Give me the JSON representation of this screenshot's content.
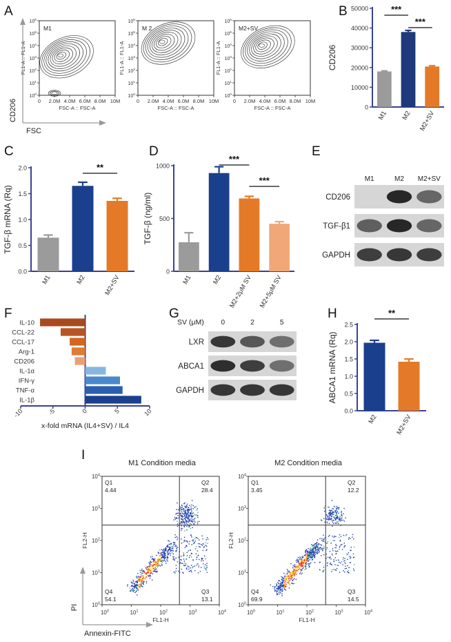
{
  "panels": {
    "A": {
      "letter": "A",
      "title": "",
      "ylabel": "CD206",
      "xlabel": "FSC",
      "plot_ylabel": "FL1-A :: FL1-A",
      "plot_xlabel": "FSC-A :: FSC-A",
      "xticks": [
        "0",
        "2.0M",
        "4.0M",
        "6.0M",
        "8.0M",
        "10M"
      ],
      "yticks": [
        "10^0",
        "10^1",
        "10^2",
        "10^3",
        "10^4",
        "10^5",
        "10^6"
      ],
      "plots": [
        {
          "label": "M1",
          "peak_x": 2.8,
          "peak_y": 3.2,
          "extra_blob": true
        },
        {
          "label": "M 2",
          "peak_x": 3.2,
          "peak_y": 4.3,
          "extra_blob": false
        },
        {
          "label": "M2+SV",
          "peak_x": 3.6,
          "peak_y": 4.0,
          "extra_blob": false
        }
      ]
    },
    "B": {
      "letter": "B",
      "chart_data": {
        "type": "bar",
        "title": "",
        "xlabel": "",
        "ylabel": "CD206",
        "categories": [
          "M1",
          "M2",
          "M2+SV"
        ],
        "values": [
          18000,
          38000,
          20500
        ],
        "errors": [
          300,
          800,
          400
        ],
        "colors": [
          "#9b9b9b",
          "#1f3a7a",
          "#e47a28"
        ],
        "ylim": [
          0,
          50000
        ],
        "yticks": [
          0,
          10000,
          20000,
          30000,
          40000,
          50000
        ],
        "significance": [
          {
            "from": 0,
            "to": 1,
            "label": "***"
          },
          {
            "from": 1,
            "to": 2,
            "label": "***"
          }
        ]
      }
    },
    "C": {
      "letter": "C",
      "chart_data": {
        "type": "bar",
        "title": "",
        "xlabel": "",
        "ylabel": "TGF-β mRNA (Rq)",
        "categories": [
          "M1",
          "M2",
          "M2+SV"
        ],
        "values": [
          0.65,
          1.65,
          1.36
        ],
        "errors": [
          0.05,
          0.07,
          0.05
        ],
        "colors": [
          "#9b9b9b",
          "#1a3f8c",
          "#e47a28"
        ],
        "ylim": [
          0,
          2.0
        ],
        "yticks": [
          "0.0",
          "0.5",
          "1.0",
          "1.5",
          "2.0"
        ],
        "significance": [
          {
            "from": 1,
            "to": 2,
            "label": "**"
          }
        ]
      }
    },
    "D": {
      "letter": "D",
      "chart_data": {
        "type": "bar",
        "title": "",
        "xlabel": "",
        "ylabel": "TGF-β (ng/ml)",
        "categories": [
          "M1",
          "M2",
          "M2+2μM SV",
          "M2+5μM SV"
        ],
        "values": [
          275,
          930,
          690,
          450
        ],
        "errors": [
          90,
          60,
          20,
          20
        ],
        "colors": [
          "#9b9b9b",
          "#1a3f8c",
          "#e47a28",
          "#f0a878"
        ],
        "ylim": [
          0,
          1000
        ],
        "yticks": [
          0,
          500,
          1000
        ],
        "significance": [
          {
            "from": 1,
            "to": 2,
            "label": "***"
          },
          {
            "from": 2,
            "to": 3,
            "label": "***"
          }
        ]
      }
    },
    "E": {
      "letter": "E",
      "lanes": [
        "M1",
        "M2",
        "M2+SV"
      ],
      "rows": [
        {
          "label": "CD206",
          "intensity": [
            0.0,
            0.95,
            0.55
          ]
        },
        {
          "label": "TGF-β1",
          "intensity": [
            0.6,
            0.95,
            0.55
          ]
        },
        {
          "label": "GAPDH",
          "intensity": [
            0.8,
            0.85,
            0.8
          ]
        }
      ]
    },
    "F": {
      "letter": "F",
      "chart_data": {
        "type": "bar",
        "orientation": "horizontal",
        "title": "",
        "xlabel": "x-fold mRNA (IL4+SV) / IL4",
        "ylabel": "",
        "categories": [
          "IL-10",
          "CCL-22",
          "CCL-17",
          "Arg-1",
          "CD206",
          "IL-1α",
          "IFN-γ",
          "TNF-α",
          "IL-1β"
        ],
        "values": [
          -7.0,
          -3.8,
          -2.4,
          -2.1,
          -1.6,
          3.2,
          5.4,
          5.8,
          8.7
        ],
        "colors": [
          "#a94a1e",
          "#b85424",
          "#d4661e",
          "#e07b33",
          "#eaa077",
          "#88b6e0",
          "#4a88cc",
          "#2a5fb0",
          "#1a3f8c"
        ],
        "xlim": [
          -10,
          10
        ],
        "xticks": [
          -10,
          -5,
          0,
          5,
          10
        ]
      }
    },
    "G": {
      "letter": "G",
      "header_label": "SV (μM)",
      "lanes": [
        "0",
        "2",
        "5"
      ],
      "rows": [
        {
          "label": "LXR",
          "intensity": [
            0.85,
            0.65,
            0.5
          ]
        },
        {
          "label": "ABCA1",
          "intensity": [
            0.9,
            0.8,
            0.5
          ]
        },
        {
          "label": "GAPDH",
          "intensity": [
            0.85,
            0.85,
            0.85
          ]
        }
      ]
    },
    "H": {
      "letter": "H",
      "chart_data": {
        "type": "bar",
        "title": "",
        "xlabel": "",
        "ylabel": "ABCA1 mRNA (Rq)",
        "categories": [
          "M2",
          "M2+SV"
        ],
        "values": [
          1.97,
          1.42
        ],
        "errors": [
          0.07,
          0.08
        ],
        "colors": [
          "#1a3f8c",
          "#e47a28"
        ],
        "ylim": [
          0,
          2.5
        ],
        "yticks": [
          "0.0",
          "0.5",
          "1.0",
          "1.5",
          "2.0",
          "2.5"
        ],
        "significance": [
          {
            "from": 0,
            "to": 1,
            "label": "**"
          }
        ]
      }
    },
    "I": {
      "letter": "I",
      "ylabel": "PI",
      "xlabel": "Annexin-FITC",
      "plot_ylabel": "FL2-H",
      "plot_xlabel": "FL1-H",
      "ticks": [
        "10^0",
        "10^1",
        "10^2",
        "10^3",
        "10^4"
      ],
      "plots": [
        {
          "title": "M1 Condition media",
          "q1_label": "Q1",
          "q1": "4.44",
          "q2_label": "Q2",
          "q2": "28.4",
          "q3_label": "Q3",
          "q3": "13.1",
          "q4_label": "Q4",
          "q4": "54.1"
        },
        {
          "title": "M2 Condition media",
          "q1_label": "Q1",
          "q1": "3.45",
          "q2_label": "Q2",
          "q2": "12.2",
          "q3_label": "Q3",
          "q3": "14.5",
          "q4_label": "Q4",
          "q4": "69.9"
        }
      ]
    }
  }
}
